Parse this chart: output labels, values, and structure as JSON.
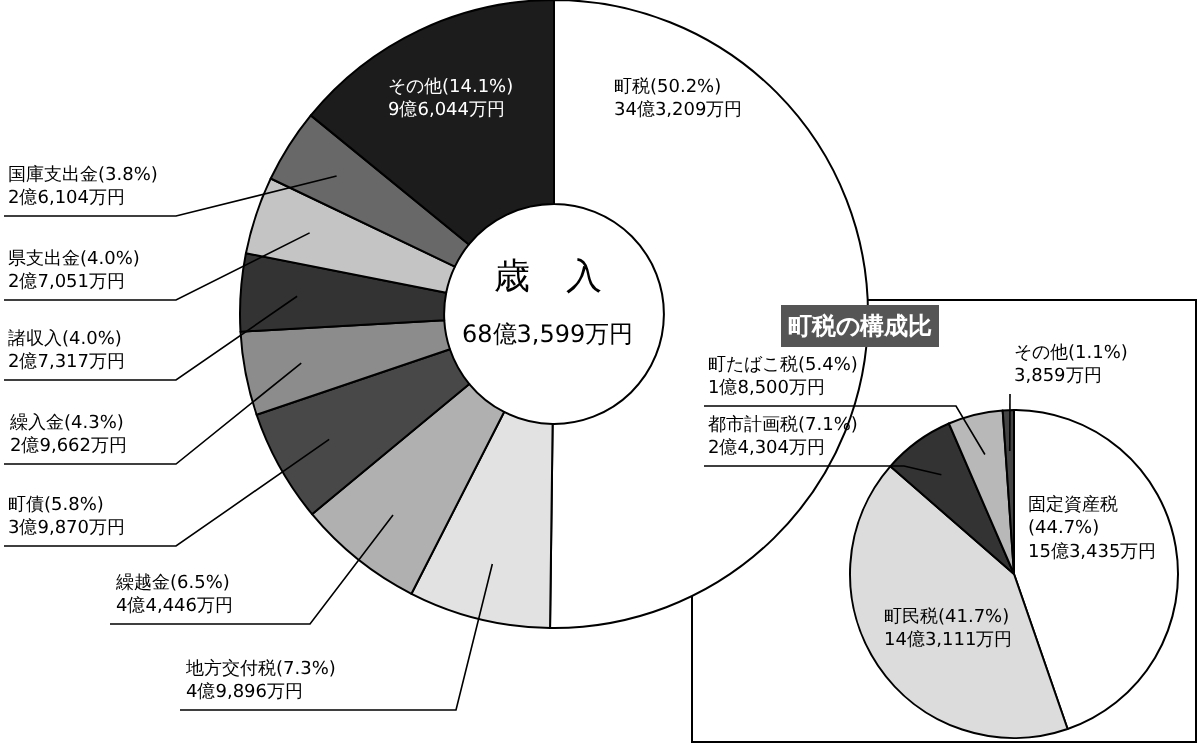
{
  "chart_data": [
    {
      "type": "donut",
      "categories": [
        "町税",
        "地方交付税",
        "繰越金",
        "町債",
        "繰入金",
        "諸収入",
        "県支出金",
        "国庫支出金",
        "その他"
      ],
      "values": [
        50.2,
        7.3,
        6.5,
        5.8,
        4.3,
        4.0,
        4.0,
        3.8,
        14.1
      ],
      "colors": [
        "#ffffff",
        "#e2e2e2",
        "#b0b0b0",
        "#484848",
        "#8c8c8c",
        "#333333",
        "#c4c4c4",
        "#686868",
        "#1c1c1c"
      ],
      "value_labels": [
        "(50.2%)\n34億3,209万円",
        "(7.3%)\n4億9,896万円",
        "(6.5%)\n4億4,446万円",
        "(5.8%)\n3億9,870万円",
        "(4.3%)\n2億9,662万円",
        "(4.0%)\n2億7,317万円",
        "(4.0%)\n2億7,051万円",
        "(3.8%)\n2億6,104万円",
        "(14.1%)\n9億6,044万円"
      ],
      "annotations": [
        "歳　入",
        "68億3,599万円"
      ]
    },
    {
      "type": "pie",
      "title": "町税の構成比",
      "categories": [
        "固定資産税",
        "町民税",
        "都市計画税",
        "町たばこ税",
        "その他"
      ],
      "values": [
        44.7,
        41.7,
        7.1,
        5.4,
        1.1
      ],
      "colors": [
        "#ffffff",
        "#dcdcdc",
        "#333333",
        "#b8b8b8",
        "#444444"
      ],
      "value_labels": [
        "\n(44.7%)\n15億3,435万円",
        "(41.7%)\n14億3,111万円",
        "(7.1%)\n2億4,304万円",
        "(5.4%)\n1億8,500万円",
        "(1.1%)\n3,859万円"
      ]
    }
  ]
}
